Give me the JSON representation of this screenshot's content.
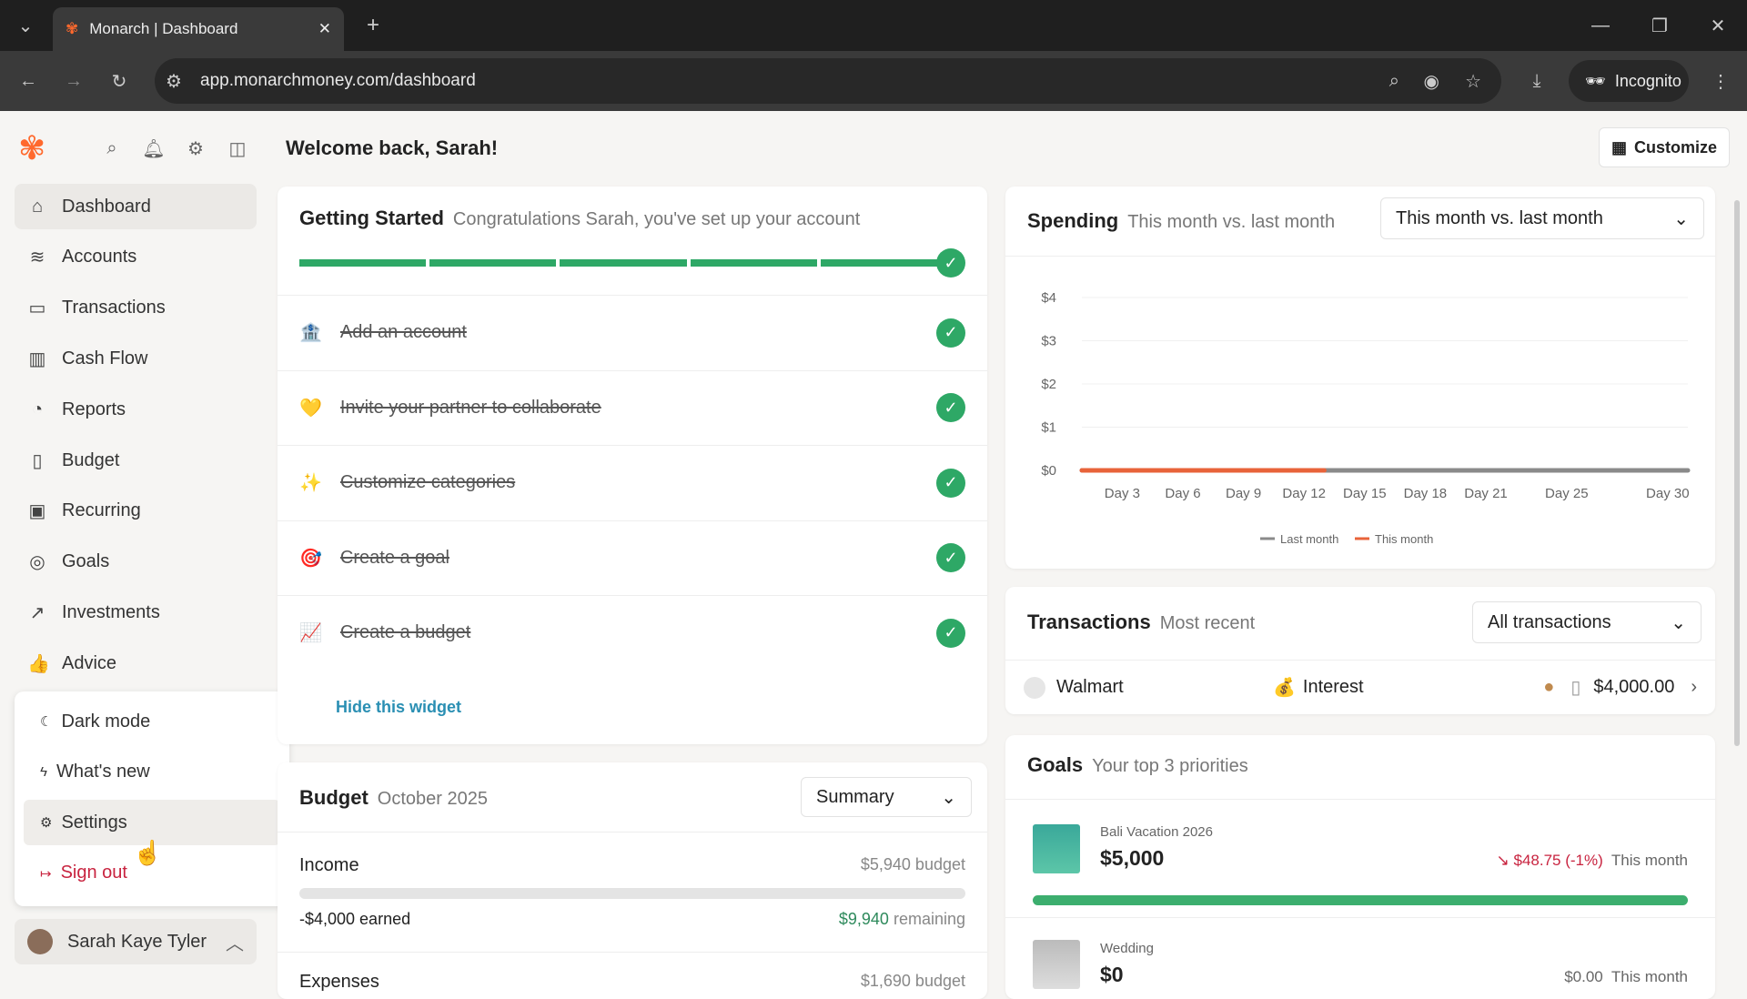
{
  "browser": {
    "tab_title": "Monarch | Dashboard",
    "url": "app.monarchmoney.com/dashboard",
    "incognito": "Incognito"
  },
  "header": {
    "welcome": "Welcome back, Sarah!",
    "customize": "Customize"
  },
  "sidebar": {
    "items": [
      {
        "label": "Dashboard",
        "icon": "⌂"
      },
      {
        "label": "Accounts",
        "icon": "≋"
      },
      {
        "label": "Transactions",
        "icon": "▭"
      },
      {
        "label": "Cash Flow",
        "icon": "▥"
      },
      {
        "label": "Reports",
        "icon": "◔"
      },
      {
        "label": "Budget",
        "icon": "▯"
      },
      {
        "label": "Recurring",
        "icon": "▣"
      },
      {
        "label": "Goals",
        "icon": "◎"
      },
      {
        "label": "Investments",
        "icon": "↗"
      },
      {
        "label": "Advice",
        "icon": "👍"
      }
    ],
    "menu": [
      {
        "label": "Dark mode",
        "icon": "☾"
      },
      {
        "label": "What's new",
        "icon": "ϟ"
      },
      {
        "label": "Settings",
        "icon": "⚙"
      },
      {
        "label": "Sign out",
        "icon": "↦"
      }
    ],
    "user": "Sarah Kaye Tyler"
  },
  "getting_started": {
    "title": "Getting Started",
    "subtitle": "Congratulations Sarah, you've set up your account",
    "progress_steps_complete": 5,
    "progress_steps_total": 5,
    "tasks": [
      {
        "label": "Add an account",
        "icon": "🏦"
      },
      {
        "label": "Invite your partner to collaborate",
        "icon": "💛"
      },
      {
        "label": "Customize categories",
        "icon": "✨"
      },
      {
        "label": "Create a goal",
        "icon": "🎯"
      },
      {
        "label": "Create a budget",
        "icon": "📈"
      }
    ],
    "hide": "Hide this widget"
  },
  "budget": {
    "title": "Budget",
    "subtitle": "October 2025",
    "select": "Summary",
    "income_label": "Income",
    "income_budget": "$5,940 budget",
    "earned": "-$4,000 earned",
    "remaining_amount": "$9,940",
    "remaining_label": "remaining",
    "expenses_label": "Expenses",
    "expenses_budget": "$1,690 budget"
  },
  "spending": {
    "title": "Spending",
    "subtitle": "This month vs. last month",
    "select": "This month vs. last month"
  },
  "transactions": {
    "title": "Transactions",
    "subtitle": "Most recent",
    "select": "All transactions",
    "rows": [
      {
        "merchant": "Walmart",
        "category": "Interest",
        "amount": "$4,000.00"
      }
    ]
  },
  "goals": {
    "title": "Goals",
    "subtitle": "Your top 3 priorities",
    "items": [
      {
        "name": "Bali Vacation 2026",
        "amount": "$5,000",
        "change": "$48.75 (-1%)",
        "period": "This month",
        "progress": 1.0
      },
      {
        "name": "Wedding",
        "amount": "$0",
        "change": "$0.00",
        "period": "This month"
      }
    ]
  },
  "chart_data": {
    "type": "line",
    "x_ticks": [
      "Day 3",
      "Day 6",
      "Day 9",
      "Day 12",
      "Day 15",
      "Day 18",
      "Day 21",
      "Day 25",
      "Day 30"
    ],
    "y_ticks": [
      "$0",
      "$1",
      "$2",
      "$3",
      "$4"
    ],
    "ylim": [
      0,
      4
    ],
    "xlim": [
      1,
      31
    ],
    "grid": true,
    "legend_placement": "bottom",
    "series": [
      {
        "name": "Last month",
        "color": "#8a8a8a",
        "x": [
          1,
          31
        ],
        "y": [
          0,
          0
        ]
      },
      {
        "name": "This month",
        "color": "#e8633a",
        "x": [
          1,
          13
        ],
        "y": [
          0,
          0
        ]
      }
    ]
  },
  "colors": {
    "accent": "#2ea866",
    "brand": "#ff692d",
    "negative": "#c8233f"
  }
}
